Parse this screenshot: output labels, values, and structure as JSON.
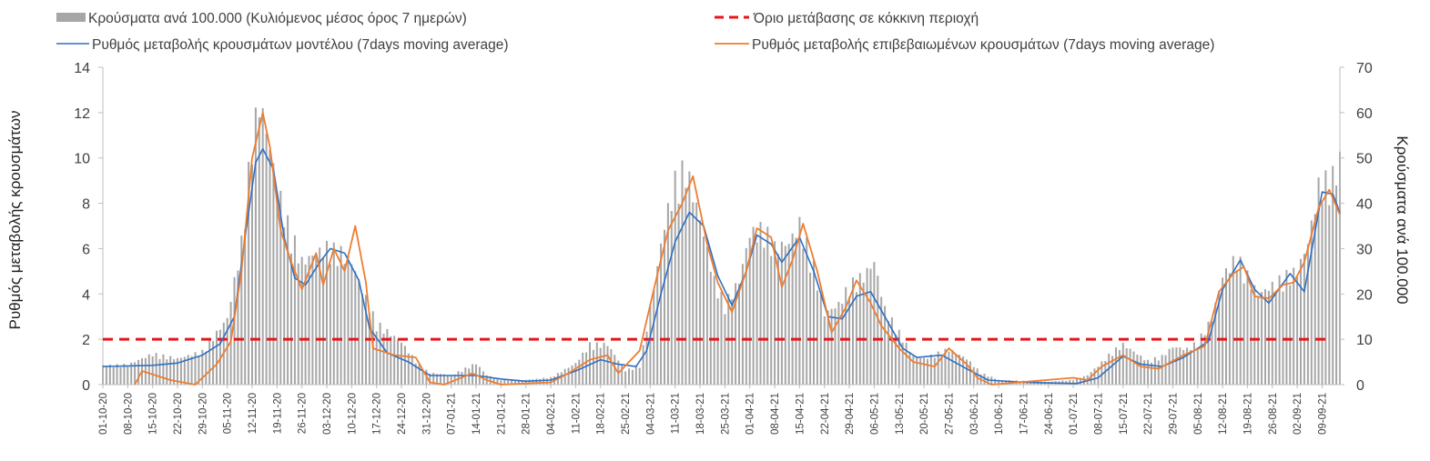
{
  "chart_data": {
    "type": "bar",
    "y_left": {
      "label": "Ρυθμός μεταβολής κρουσμάτων",
      "min": 0,
      "max": 14,
      "ticks": [
        0,
        2,
        4,
        6,
        8,
        10,
        12,
        14
      ]
    },
    "y_right": {
      "label": "Κρούσματα ανά 100.000",
      "min": 0,
      "max": 70,
      "ticks": [
        0,
        10,
        20,
        30,
        40,
        50,
        60,
        70
      ]
    },
    "x": {
      "start": "2020-10-01",
      "end": "2021-09-14",
      "tick_labels": [
        "01-10-20",
        "08-10-20",
        "15-10-20",
        "22-10-20",
        "29-10-20",
        "05-11-20",
        "12-11-20",
        "19-11-20",
        "26-11-20",
        "03-12-20",
        "10-12-20",
        "17-12-20",
        "24-12-20",
        "31-12-20",
        "07-01-21",
        "14-01-21",
        "21-01-21",
        "28-01-21",
        "04-02-21",
        "11-02-21",
        "18-02-21",
        "25-02-21",
        "04-03-21",
        "11-03-21",
        "18-03-21",
        "25-03-21",
        "01-04-21",
        "08-04-21",
        "15-04-21",
        "22-04-21",
        "29-04-21",
        "06-05-21",
        "13-05-21",
        "20-05-21",
        "27-05-21",
        "03-06-21",
        "10-06-21",
        "17-06-21",
        "24-06-21",
        "01-07-21",
        "08-07-21",
        "15-07-21",
        "22-07-21",
        "29-07-21",
        "05-08-21",
        "12-08-21",
        "19-08-21",
        "26-08-21",
        "02-09-21",
        "09-09-21"
      ]
    },
    "threshold": {
      "name": "Όριο μετάβασης σε κόκκινη περιοχή",
      "value": 2,
      "color": "#e8151b"
    },
    "series": [
      {
        "name": "Κρούσματα ανά 100.000 (Κυλιόμενος μέσος όρος 7 ημερών)",
        "kind": "bar",
        "axis": "right",
        "color": "#a6a6a6",
        "points": [
          [
            "2020-10-01",
            4
          ],
          [
            "2020-10-08",
            4.2
          ],
          [
            "2020-10-15",
            6.5
          ],
          [
            "2020-10-22",
            5.5
          ],
          [
            "2020-10-29",
            7
          ],
          [
            "2020-11-05",
            14
          ],
          [
            "2020-11-09",
            30
          ],
          [
            "2020-11-12",
            52
          ],
          [
            "2020-11-14",
            60
          ],
          [
            "2020-11-16",
            54
          ],
          [
            "2020-11-19",
            42
          ],
          [
            "2020-11-22",
            34
          ],
          [
            "2020-11-26",
            26
          ],
          [
            "2020-12-03",
            29
          ],
          [
            "2020-12-07",
            28
          ],
          [
            "2020-12-10",
            26
          ],
          [
            "2020-12-13",
            20
          ],
          [
            "2020-12-17",
            13
          ],
          [
            "2020-12-24",
            9
          ],
          [
            "2020-12-29",
            4
          ],
          [
            "2021-01-01",
            2.5
          ],
          [
            "2021-01-07",
            2
          ],
          [
            "2021-01-14",
            4.5
          ],
          [
            "2021-01-17",
            2
          ],
          [
            "2021-01-21",
            1
          ],
          [
            "2021-01-28",
            1
          ],
          [
            "2021-02-04",
            1.5
          ],
          [
            "2021-02-11",
            4.5
          ],
          [
            "2021-02-15",
            8.5
          ],
          [
            "2021-02-20",
            8.5
          ],
          [
            "2021-02-25",
            3
          ],
          [
            "2021-03-01",
            4
          ],
          [
            "2021-03-04",
            16
          ],
          [
            "2021-03-08",
            34
          ],
          [
            "2021-03-11",
            43
          ],
          [
            "2021-03-14",
            46
          ],
          [
            "2021-03-18",
            35
          ],
          [
            "2021-03-22",
            22
          ],
          [
            "2021-03-25",
            17
          ],
          [
            "2021-03-29",
            22
          ],
          [
            "2021-04-01",
            32
          ],
          [
            "2021-04-05",
            33
          ],
          [
            "2021-04-08",
            29
          ],
          [
            "2021-04-12",
            30
          ],
          [
            "2021-04-15",
            34
          ],
          [
            "2021-04-19",
            25
          ],
          [
            "2021-04-22",
            15
          ],
          [
            "2021-04-26",
            17
          ],
          [
            "2021-04-29",
            21
          ],
          [
            "2021-05-03",
            23
          ],
          [
            "2021-05-06",
            26
          ],
          [
            "2021-05-09",
            16
          ],
          [
            "2021-05-13",
            11
          ],
          [
            "2021-05-17",
            6
          ],
          [
            "2021-05-20",
            5.5
          ],
          [
            "2021-05-27",
            7.5
          ],
          [
            "2021-06-01",
            5.5
          ],
          [
            "2021-06-05",
            2.5
          ],
          [
            "2021-06-10",
            1
          ],
          [
            "2021-06-17",
            0.8
          ],
          [
            "2021-06-24",
            0.6
          ],
          [
            "2021-07-01",
            1
          ],
          [
            "2021-07-05",
            2
          ],
          [
            "2021-07-08",
            4
          ],
          [
            "2021-07-12",
            7
          ],
          [
            "2021-07-15",
            8.5
          ],
          [
            "2021-07-19",
            6.5
          ],
          [
            "2021-07-22",
            5
          ],
          [
            "2021-07-26",
            6
          ],
          [
            "2021-07-29",
            8
          ],
          [
            "2021-08-02",
            7.5
          ],
          [
            "2021-08-05",
            9
          ],
          [
            "2021-08-09",
            14
          ],
          [
            "2021-08-12",
            23
          ],
          [
            "2021-08-16",
            27
          ],
          [
            "2021-08-19",
            23
          ],
          [
            "2021-08-22",
            19
          ],
          [
            "2021-08-26",
            21
          ],
          [
            "2021-08-30",
            23
          ],
          [
            "2021-09-02",
            24
          ],
          [
            "2021-09-05",
            30
          ],
          [
            "2021-09-08",
            42
          ],
          [
            "2021-09-12",
            44
          ],
          [
            "2021-09-14",
            47.5
          ]
        ]
      },
      {
        "name": "Ρυθμός μεταβολής κρουσμάτων μοντέλου (7days moving average)",
        "kind": "line",
        "axis": "left",
        "color": "#2e6fc4",
        "points": [
          [
            "2020-10-01",
            0.8
          ],
          [
            "2020-10-15",
            0.85
          ],
          [
            "2020-10-22",
            0.95
          ],
          [
            "2020-10-29",
            1.3
          ],
          [
            "2020-11-03",
            1.8
          ],
          [
            "2020-11-07",
            3
          ],
          [
            "2020-11-10",
            6.5
          ],
          [
            "2020-11-13",
            9.8
          ],
          [
            "2020-11-15",
            10.4
          ],
          [
            "2020-11-18",
            9.5
          ],
          [
            "2020-11-21",
            6.5
          ],
          [
            "2020-11-24",
            4.7
          ],
          [
            "2020-11-27",
            4.4
          ],
          [
            "2020-12-01",
            5.4
          ],
          [
            "2020-12-04",
            6
          ],
          [
            "2020-12-08",
            5.8
          ],
          [
            "2020-12-12",
            4.6
          ],
          [
            "2020-12-15",
            2.5
          ],
          [
            "2020-12-20",
            1.4
          ],
          [
            "2020-12-26",
            1
          ],
          [
            "2021-01-01",
            0.4
          ],
          [
            "2021-01-14",
            0.4
          ],
          [
            "2021-01-21",
            0.25
          ],
          [
            "2021-01-28",
            0.15
          ],
          [
            "2021-02-04",
            0.2
          ],
          [
            "2021-02-11",
            0.6
          ],
          [
            "2021-02-18",
            1.1
          ],
          [
            "2021-02-23",
            0.9
          ],
          [
            "2021-02-28",
            0.8
          ],
          [
            "2021-03-03",
            1.5
          ],
          [
            "2021-03-07",
            4
          ],
          [
            "2021-03-11",
            6.3
          ],
          [
            "2021-03-15",
            7.6
          ],
          [
            "2021-03-19",
            7
          ],
          [
            "2021-03-23",
            4.8
          ],
          [
            "2021-03-27",
            3.5
          ],
          [
            "2021-03-31",
            5
          ],
          [
            "2021-04-03",
            6.6
          ],
          [
            "2021-04-07",
            6.2
          ],
          [
            "2021-04-10",
            5.4
          ],
          [
            "2021-04-15",
            6.5
          ],
          [
            "2021-04-19",
            5
          ],
          [
            "2021-04-23",
            3
          ],
          [
            "2021-04-27",
            2.9
          ],
          [
            "2021-05-01",
            3.9
          ],
          [
            "2021-05-05",
            4.1
          ],
          [
            "2021-05-09",
            3
          ],
          [
            "2021-05-14",
            1.6
          ],
          [
            "2021-05-18",
            1.2
          ],
          [
            "2021-05-25",
            1.3
          ],
          [
            "2021-06-01",
            0.7
          ],
          [
            "2021-06-07",
            0.2
          ],
          [
            "2021-06-17",
            0.1
          ],
          [
            "2021-07-02",
            0.05
          ],
          [
            "2021-07-08",
            0.3
          ],
          [
            "2021-07-15",
            1.25
          ],
          [
            "2021-07-20",
            0.9
          ],
          [
            "2021-07-26",
            0.8
          ],
          [
            "2021-08-01",
            1.2
          ],
          [
            "2021-08-08",
            1.9
          ],
          [
            "2021-08-12",
            4.2
          ],
          [
            "2021-08-17",
            5.5
          ],
          [
            "2021-08-21",
            4.2
          ],
          [
            "2021-08-25",
            3.6
          ],
          [
            "2021-08-31",
            4.9
          ],
          [
            "2021-09-04",
            4.1
          ],
          [
            "2021-09-09",
            8.5
          ],
          [
            "2021-09-12",
            8.4
          ],
          [
            "2021-09-14",
            7.6
          ]
        ]
      },
      {
        "name": "Ρυθμός μεταβολής επιβεβαιωμένων κρουσμάτων (7days moving average)",
        "kind": "line",
        "axis": "left",
        "color": "#ed7d31",
        "points": [
          [
            "2020-10-10",
            0
          ],
          [
            "2020-10-12",
            0.6
          ],
          [
            "2020-10-20",
            0.2
          ],
          [
            "2020-10-27",
            0
          ],
          [
            "2020-11-02",
            0.9
          ],
          [
            "2020-11-06",
            1.9
          ],
          [
            "2020-11-09",
            5
          ],
          [
            "2020-11-12",
            10
          ],
          [
            "2020-11-15",
            12
          ],
          [
            "2020-11-17",
            10.5
          ],
          [
            "2020-11-20",
            6.8
          ],
          [
            "2020-11-23",
            5.4
          ],
          [
            "2020-11-26",
            4.2
          ],
          [
            "2020-11-30",
            5.8
          ],
          [
            "2020-12-02",
            4.4
          ],
          [
            "2020-12-05",
            6
          ],
          [
            "2020-12-08",
            5
          ],
          [
            "2020-12-11",
            7
          ],
          [
            "2020-12-14",
            4.5
          ],
          [
            "2020-12-16",
            1.6
          ],
          [
            "2020-12-22",
            1.3
          ],
          [
            "2020-12-28",
            1.2
          ],
          [
            "2021-01-01",
            0.1
          ],
          [
            "2021-01-05",
            0
          ],
          [
            "2021-01-13",
            0.5
          ],
          [
            "2021-01-17",
            0.2
          ],
          [
            "2021-01-21",
            0
          ],
          [
            "2021-02-04",
            0.1
          ],
          [
            "2021-02-09",
            0.5
          ],
          [
            "2021-02-15",
            1.1
          ],
          [
            "2021-02-20",
            1.3
          ],
          [
            "2021-02-23",
            0.5
          ],
          [
            "2021-03-01",
            1.5
          ],
          [
            "2021-03-05",
            4.2
          ],
          [
            "2021-03-09",
            6.8
          ],
          [
            "2021-03-13",
            8
          ],
          [
            "2021-03-16",
            9.2
          ],
          [
            "2021-03-20",
            6.2
          ],
          [
            "2021-03-23",
            4.5
          ],
          [
            "2021-03-27",
            3.2
          ],
          [
            "2021-03-31",
            5
          ],
          [
            "2021-04-03",
            6.9
          ],
          [
            "2021-04-07",
            6.5
          ],
          [
            "2021-04-10",
            4.3
          ],
          [
            "2021-04-13",
            5.5
          ],
          [
            "2021-04-16",
            7.1
          ],
          [
            "2021-04-20",
            5
          ],
          [
            "2021-04-24",
            2.3
          ],
          [
            "2021-04-28",
            3.4
          ],
          [
            "2021-05-01",
            4.6
          ],
          [
            "2021-05-05",
            3.6
          ],
          [
            "2021-05-08",
            2.6
          ],
          [
            "2021-05-13",
            1.6
          ],
          [
            "2021-05-17",
            1
          ],
          [
            "2021-05-23",
            0.8
          ],
          [
            "2021-05-27",
            1.6
          ],
          [
            "2021-06-01",
            0.9
          ],
          [
            "2021-06-04",
            0.3
          ],
          [
            "2021-06-08",
            0
          ],
          [
            "2021-07-01",
            0.3
          ],
          [
            "2021-07-05",
            0.2
          ],
          [
            "2021-07-09",
            0.8
          ],
          [
            "2021-07-15",
            1.3
          ],
          [
            "2021-07-20",
            0.8
          ],
          [
            "2021-07-25",
            0.7
          ],
          [
            "2021-08-01",
            1.3
          ],
          [
            "2021-08-07",
            1.7
          ],
          [
            "2021-08-11",
            4.1
          ],
          [
            "2021-08-15",
            4.9
          ],
          [
            "2021-08-18",
            5.2
          ],
          [
            "2021-08-21",
            3.9
          ],
          [
            "2021-08-25",
            3.8
          ],
          [
            "2021-08-29",
            4.4
          ],
          [
            "2021-09-01",
            4.5
          ],
          [
            "2021-09-04",
            5.4
          ],
          [
            "2021-09-08",
            7.8
          ],
          [
            "2021-09-11",
            8.6
          ],
          [
            "2021-09-14",
            7.5
          ]
        ]
      }
    ],
    "legend_placement": "top",
    "grid": false
  }
}
